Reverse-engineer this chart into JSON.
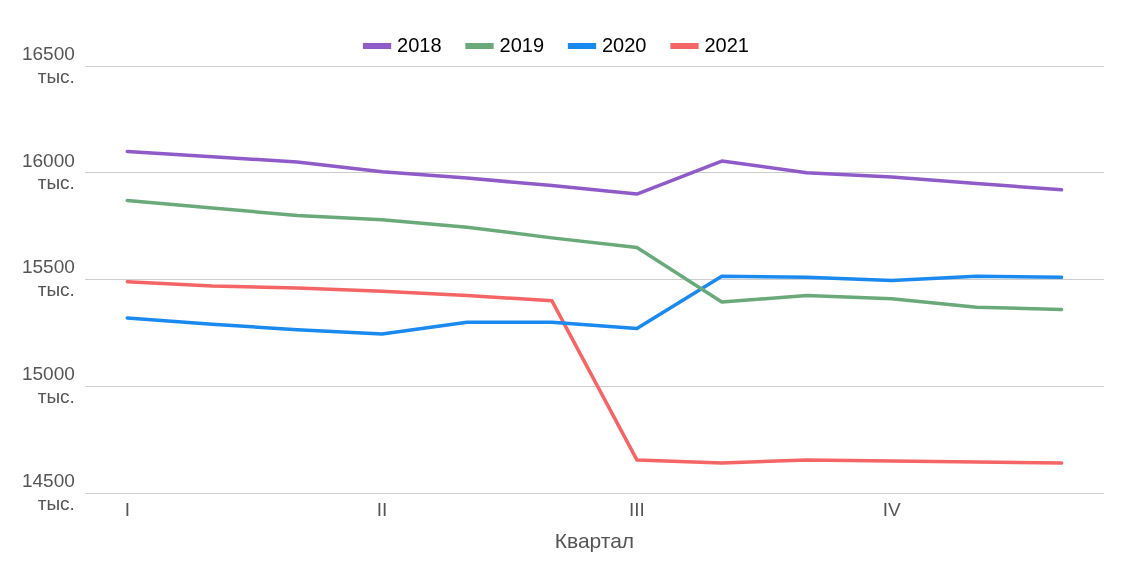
{
  "chart_data": {
    "type": "line",
    "xlabel": "Квартал",
    "categories": [
      "I",
      null,
      null,
      "II",
      null,
      null,
      "III",
      null,
      null,
      "IV",
      null,
      null
    ],
    "series": [
      {
        "name": "2018",
        "color": "#8e5bc9",
        "values": [
          16100,
          16075,
          16050,
          16005,
          15975,
          15940,
          15900,
          16055,
          16000,
          15980,
          15950,
          15920
        ]
      },
      {
        "name": "2019",
        "color": "#6aaa7a",
        "values": [
          15870,
          15835,
          15800,
          15780,
          15745,
          15695,
          15650,
          15395,
          15425,
          15410,
          15370,
          15360
        ]
      },
      {
        "name": "2020",
        "color": "#1a8af0",
        "values": [
          15320,
          15290,
          15265,
          15245,
          15300,
          15300,
          15270,
          15515,
          15510,
          15495,
          15515,
          15510
        ]
      },
      {
        "name": "2021",
        "color": "#f56565",
        "values": [
          15490,
          15470,
          15460,
          15445,
          15425,
          15400,
          14655,
          14640,
          14655,
          14650,
          14645,
          14640
        ]
      }
    ],
    "ylim": [
      14500,
      16500
    ],
    "yticks": [
      {
        "value": 14500,
        "label": "14500 тыс."
      },
      {
        "value": 15000,
        "label": "15000 тыс."
      },
      {
        "value": 15500,
        "label": "15500 тыс."
      },
      {
        "value": 16000,
        "label": "16000 тыс."
      },
      {
        "value": 16500,
        "label": "16500 тыс."
      }
    ],
    "grid": "y",
    "legend": "top",
    "marker": "none",
    "line_style": "solid"
  }
}
